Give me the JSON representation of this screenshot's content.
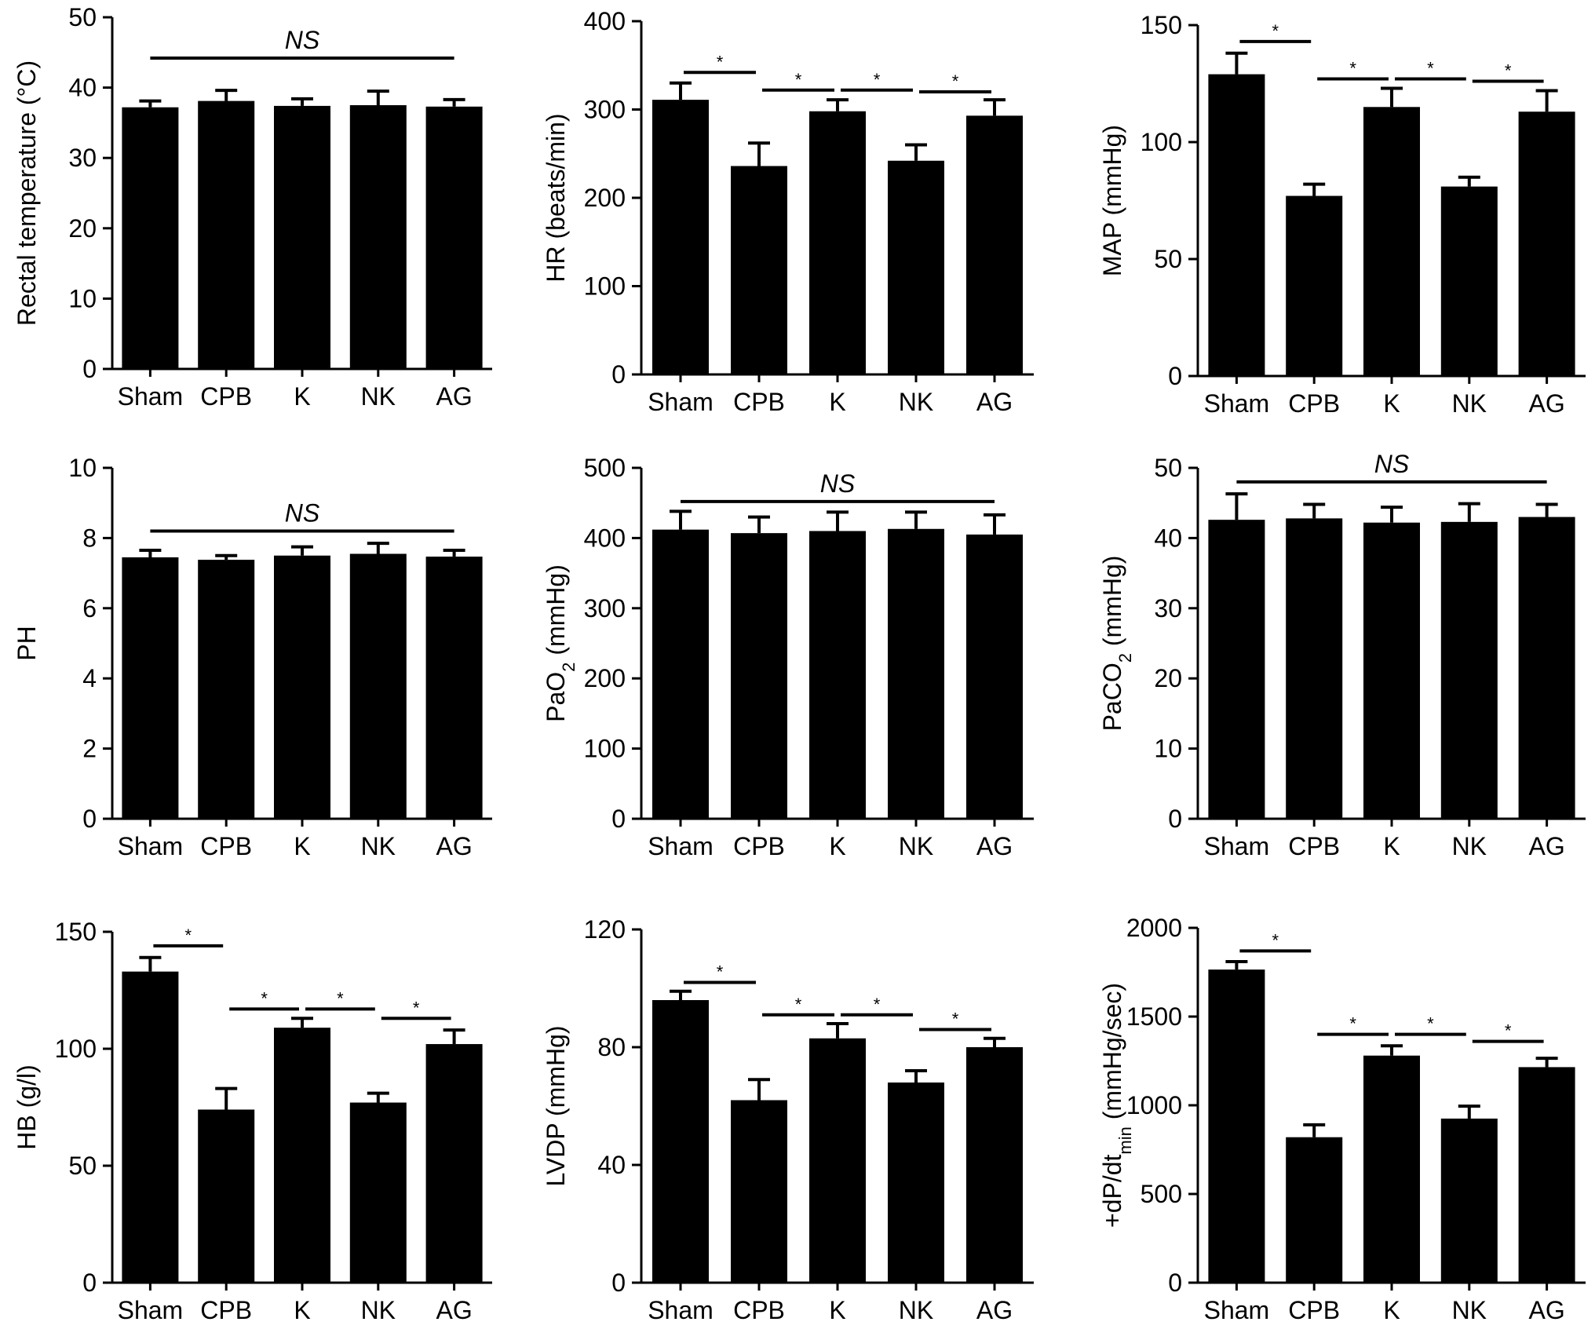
{
  "chart_data": [
    {
      "type": "bar",
      "ylabel": "Rectal temperature (°C)",
      "ylabel_parts": [
        {
          "t": "Rectal temperature (°C)"
        }
      ],
      "categories": [
        "Sham",
        "CPB",
        "K",
        "NK",
        "AG"
      ],
      "values": [
        37.2,
        38.1,
        37.4,
        37.5,
        37.3
      ],
      "errors": [
        0.9,
        1.5,
        1.0,
        2.0,
        1.0
      ],
      "ylim": [
        0,
        50
      ],
      "yticks": [
        0,
        10,
        20,
        30,
        40,
        50
      ],
      "significance": [
        {
          "from": 0,
          "to": 4,
          "label": "NS",
          "y": 44.2
        }
      ]
    },
    {
      "type": "bar",
      "ylabel": "HR (beats/min)",
      "ylabel_parts": [
        {
          "t": "HR (beats/min)"
        }
      ],
      "categories": [
        "Sham",
        "CPB",
        "K",
        "NK",
        "AG"
      ],
      "values": [
        311,
        236,
        298,
        242,
        293
      ],
      "errors": [
        19,
        26,
        13,
        18,
        18
      ],
      "ylim": [
        0,
        400
      ],
      "yticks": [
        0,
        100,
        200,
        300,
        400
      ],
      "significance": [
        {
          "from": 0,
          "to": 1,
          "label": "*",
          "y": 342
        },
        {
          "from": 1,
          "to": 2,
          "label": "*",
          "y": 322
        },
        {
          "from": 2,
          "to": 3,
          "label": "*",
          "y": 322
        },
        {
          "from": 3,
          "to": 4,
          "label": "*",
          "y": 320
        }
      ]
    },
    {
      "type": "bar",
      "ylabel": "MAP (mmHg)",
      "ylabel_parts": [
        {
          "t": "MAP (mmHg)"
        }
      ],
      "categories": [
        "Sham",
        "CPB",
        "K",
        "NK",
        "AG"
      ],
      "values": [
        129,
        77,
        115,
        81,
        113
      ],
      "errors": [
        9,
        5,
        8,
        4,
        9
      ],
      "ylim": [
        0,
        150
      ],
      "yticks": [
        0,
        50,
        100,
        150
      ],
      "significance": [
        {
          "from": 0,
          "to": 1,
          "label": "*",
          "y": 143
        },
        {
          "from": 1,
          "to": 2,
          "label": "*",
          "y": 127
        },
        {
          "from": 2,
          "to": 3,
          "label": "*",
          "y": 127
        },
        {
          "from": 3,
          "to": 4,
          "label": "*",
          "y": 126
        }
      ]
    },
    {
      "type": "bar",
      "ylabel": "PH",
      "ylabel_parts": [
        {
          "t": "PH"
        }
      ],
      "categories": [
        "Sham",
        "CPB",
        "K",
        "NK",
        "AG"
      ],
      "values": [
        7.45,
        7.38,
        7.5,
        7.55,
        7.47
      ],
      "errors": [
        0.2,
        0.12,
        0.25,
        0.3,
        0.18
      ],
      "ylim": [
        0,
        10
      ],
      "yticks": [
        0,
        2,
        4,
        6,
        8,
        10
      ],
      "significance": [
        {
          "from": 0,
          "to": 4,
          "label": "NS",
          "y": 8.2
        }
      ]
    },
    {
      "type": "bar",
      "ylabel": "PaO2 (mmHg)",
      "ylabel_parts": [
        {
          "t": "PaO"
        },
        {
          "t": "2",
          "sub": true
        },
        {
          "t": " (mmHg)"
        }
      ],
      "categories": [
        "Sham",
        "CPB",
        "K",
        "NK",
        "AG"
      ],
      "values": [
        412,
        407,
        410,
        413,
        405
      ],
      "errors": [
        26,
        23,
        27,
        24,
        28
      ],
      "ylim": [
        0,
        500
      ],
      "yticks": [
        0,
        100,
        200,
        300,
        400,
        500
      ],
      "significance": [
        {
          "from": 0,
          "to": 4,
          "label": "NS",
          "y": 452
        }
      ]
    },
    {
      "type": "bar",
      "ylabel": "PaCO2 (mmHg)",
      "ylabel_parts": [
        {
          "t": "PaCO"
        },
        {
          "t": "2",
          "sub": true
        },
        {
          "t": " (mmHg)"
        }
      ],
      "categories": [
        "Sham",
        "CPB",
        "K",
        "NK",
        "AG"
      ],
      "values": [
        42.6,
        42.8,
        42.2,
        42.3,
        43.0
      ],
      "errors": [
        3.7,
        2.0,
        2.2,
        2.6,
        1.8
      ],
      "ylim": [
        0,
        50
      ],
      "yticks": [
        0,
        10,
        20,
        30,
        40,
        50
      ],
      "significance": [
        {
          "from": 0,
          "to": 4,
          "label": "NS",
          "y": 48.0
        }
      ]
    },
    {
      "type": "bar",
      "ylabel": "HB (g/l)",
      "ylabel_parts": [
        {
          "t": "HB (g/l)"
        }
      ],
      "categories": [
        "Sham",
        "CPB",
        "K",
        "NK",
        "AG"
      ],
      "values": [
        133,
        74,
        109,
        77,
        102
      ],
      "errors": [
        6,
        9,
        4,
        4,
        6
      ],
      "ylim": [
        0,
        150
      ],
      "yticks": [
        0,
        50,
        100,
        150
      ],
      "significance": [
        {
          "from": 0,
          "to": 1,
          "label": "*",
          "y": 144
        },
        {
          "from": 1,
          "to": 2,
          "label": "*",
          "y": 117
        },
        {
          "from": 2,
          "to": 3,
          "label": "*",
          "y": 117
        },
        {
          "from": 3,
          "to": 4,
          "label": "*",
          "y": 113
        }
      ]
    },
    {
      "type": "bar",
      "ylabel": "LVDP (mmHg)",
      "ylabel_parts": [
        {
          "t": "LVDP (mmHg)"
        }
      ],
      "categories": [
        "Sham",
        "CPB",
        "K",
        "NK",
        "AG"
      ],
      "values": [
        96,
        62,
        83,
        68,
        80
      ],
      "errors": [
        3,
        7,
        5,
        4,
        3
      ],
      "ylim": [
        0,
        120
      ],
      "yticks": [
        0,
        40,
        80,
        120
      ],
      "significance": [
        {
          "from": 0,
          "to": 1,
          "label": "*",
          "y": 102
        },
        {
          "from": 1,
          "to": 2,
          "label": "*",
          "y": 91
        },
        {
          "from": 2,
          "to": 3,
          "label": "*",
          "y": 91
        },
        {
          "from": 3,
          "to": 4,
          "label": "*",
          "y": 86
        }
      ]
    },
    {
      "type": "bar",
      "ylabel": "+dP/dtmin (mmHg/sec)",
      "ylabel_parts": [
        {
          "t": "+dP/dt"
        },
        {
          "t": "min",
          "sub": true
        },
        {
          "t": " (mmHg/sec)"
        }
      ],
      "categories": [
        "Sham",
        "CPB",
        "K",
        "NK",
        "AG"
      ],
      "values": [
        1765,
        820,
        1280,
        925,
        1215
      ],
      "errors": [
        45,
        70,
        55,
        70,
        50
      ],
      "ylim": [
        0,
        2000
      ],
      "yticks": [
        0,
        500,
        1000,
        1500,
        2000
      ],
      "significance": [
        {
          "from": 0,
          "to": 1,
          "label": "*",
          "y": 1870
        },
        {
          "from": 1,
          "to": 2,
          "label": "*",
          "y": 1400
        },
        {
          "from": 2,
          "to": 3,
          "label": "*",
          "y": 1400
        },
        {
          "from": 3,
          "to": 4,
          "label": "*",
          "y": 1360
        }
      ]
    }
  ]
}
